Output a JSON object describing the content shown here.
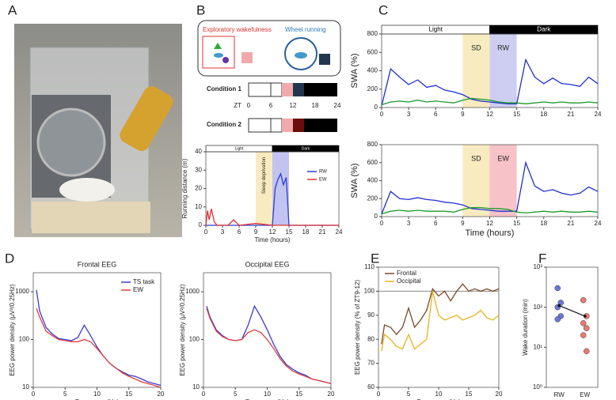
{
  "panel_labels": [
    "A",
    "B",
    "C",
    "D",
    "E",
    "F"
  ],
  "schematic": {
    "exploratory_label": "Exploratory wakefulness",
    "wheel_label": "Wheel running",
    "condition_1": "Condition 1",
    "condition_2": "Condition 2",
    "zt_label": "ZT",
    "zt_ticks": [
      0,
      6,
      12,
      18,
      24
    ]
  },
  "chart_data": [
    {
      "type": "line",
      "xlabel": "Time (hours)",
      "ylabel": "Running distance (m)",
      "xlim": [
        0,
        24
      ],
      "xticks": [
        0,
        3,
        6,
        9,
        12,
        15,
        18,
        21,
        24
      ],
      "ylim": [
        0,
        40
      ],
      "yticks": [
        0,
        10,
        20,
        30,
        40
      ],
      "phases": [
        {
          "label": "Light",
          "x": [
            0,
            12
          ],
          "color": "#ffffff"
        },
        {
          "label": "Dark",
          "x": [
            12,
            24
          ],
          "color": "#000000"
        }
      ],
      "shaded": [
        {
          "label": "Sleep deprivation",
          "x": [
            9,
            12
          ],
          "color": "#f7e7b4"
        },
        {
          "x": [
            12,
            15
          ],
          "color": "#b7b9ee"
        }
      ],
      "legend": "right",
      "series": [
        {
          "name": "RW",
          "color": "#2b3fd1",
          "x": [
            0,
            9,
            12,
            12.5,
            13,
            13.5,
            14,
            14.5,
            15,
            18,
            24
          ],
          "values": [
            0,
            0,
            0,
            20,
            25,
            28,
            22,
            26,
            0,
            0,
            0
          ]
        },
        {
          "name": "EW",
          "color": "#e03030",
          "x": [
            0,
            0.3,
            0.6,
            1,
            1.5,
            2,
            4,
            5,
            6,
            9,
            12,
            24
          ],
          "values": [
            0,
            8,
            3,
            9,
            2,
            0,
            0,
            3,
            0,
            1,
            0,
            0
          ]
        }
      ]
    },
    {
      "type": "line",
      "ylabel": "SWA (%)",
      "xlim": [
        0,
        24
      ],
      "xticks": [
        0,
        3,
        6,
        9,
        12,
        15,
        18,
        21,
        24
      ],
      "ylim": [
        0,
        800
      ],
      "yticks": [
        0,
        200,
        400,
        600,
        800
      ],
      "phases": [
        {
          "label": "Light",
          "x": [
            0,
            12
          ],
          "color": "#ffffff"
        },
        {
          "label": "Dark",
          "x": [
            12,
            24
          ],
          "color": "#000000"
        }
      ],
      "shaded": [
        {
          "label": "SD",
          "x": [
            9,
            12
          ],
          "color": "#f7e7b4"
        },
        {
          "label": "RW",
          "x": [
            12,
            15
          ],
          "color": "#c5c6f0"
        }
      ],
      "x": [
        0,
        1,
        2,
        3,
        4,
        5,
        6,
        7,
        8,
        9,
        10,
        11,
        12,
        13,
        14,
        15,
        16,
        17,
        18,
        19,
        20,
        21,
        22,
        23,
        24
      ],
      "series": [
        {
          "color": "#1f2fd0",
          "values": [
            20,
            420,
            330,
            250,
            300,
            220,
            240,
            190,
            170,
            140,
            90,
            70,
            60,
            50,
            40,
            40,
            520,
            330,
            260,
            320,
            260,
            250,
            230,
            330,
            260
          ]
        },
        {
          "color": "#1f9a2b",
          "values": [
            30,
            60,
            70,
            60,
            80,
            60,
            70,
            60,
            50,
            80,
            100,
            90,
            80,
            60,
            50,
            50,
            40,
            50,
            60,
            50,
            60,
            50,
            50,
            60,
            50
          ]
        }
      ]
    },
    {
      "type": "line",
      "xlabel": "Time (hours)",
      "ylabel": "SWA (%)",
      "xlim": [
        0,
        24
      ],
      "xticks": [
        0,
        3,
        6,
        9,
        12,
        15,
        18,
        21,
        24
      ],
      "ylim": [
        0,
        800
      ],
      "yticks": [
        0,
        200,
        400,
        600,
        800
      ],
      "shaded": [
        {
          "label": "SD",
          "x": [
            9,
            12
          ],
          "color": "#f7e7b4"
        },
        {
          "label": "EW",
          "x": [
            12,
            15
          ],
          "color": "#f6b9be"
        }
      ],
      "x": [
        0,
        1,
        2,
        3,
        4,
        5,
        6,
        7,
        8,
        9,
        10,
        11,
        12,
        13,
        14,
        15,
        16,
        17,
        18,
        19,
        20,
        21,
        22,
        23,
        24
      ],
      "series": [
        {
          "color": "#1f2fd0",
          "values": [
            30,
            280,
            200,
            190,
            210,
            190,
            180,
            160,
            150,
            130,
            90,
            80,
            70,
            60,
            60,
            60,
            600,
            340,
            280,
            300,
            260,
            240,
            260,
            330,
            280
          ]
        },
        {
          "color": "#1f9a2b",
          "values": [
            30,
            60,
            70,
            60,
            70,
            60,
            60,
            60,
            50,
            80,
            100,
            100,
            90,
            90,
            80,
            50,
            40,
            50,
            60,
            50,
            60,
            50,
            50,
            60,
            50
          ]
        }
      ]
    },
    {
      "type": "line",
      "title": "Frontal EEG",
      "xlabel": "Frequency (Hz)",
      "ylabel": "EEG power density (µV²/0.25Hz)",
      "log_y": true,
      "xlim": [
        0,
        20
      ],
      "xticks": [
        0,
        5,
        10,
        15,
        20
      ],
      "ylim": [
        10,
        2500
      ],
      "yticks": [
        10,
        100,
        1000
      ],
      "legend": "upper right",
      "x": [
        0.5,
        1,
        2,
        3,
        4,
        5,
        6,
        7,
        8,
        9,
        10,
        11,
        12,
        13,
        14,
        15,
        16,
        17,
        18,
        19,
        20
      ],
      "series": [
        {
          "name": "TS task",
          "color": "#3a3ad8",
          "values": [
            1100,
            400,
            180,
            130,
            105,
            100,
            95,
            110,
            200,
            120,
            70,
            45,
            32,
            25,
            21,
            18,
            17,
            15,
            13,
            12,
            11
          ]
        },
        {
          "name": "EW",
          "color": "#e0403a",
          "values": [
            450,
            300,
            150,
            120,
            100,
            95,
            90,
            90,
            100,
            90,
            65,
            45,
            32,
            25,
            20,
            17,
            15,
            13,
            12,
            11,
            10
          ]
        }
      ]
    },
    {
      "type": "line",
      "title": "Occipital EEG",
      "xlabel": "Frequency (Hz)",
      "ylabel": "EEG power density (µV²/0.25Hz)",
      "log_y": true,
      "xlim": [
        0,
        20
      ],
      "xticks": [
        0,
        5,
        10,
        15,
        20
      ],
      "ylim": [
        10,
        2500
      ],
      "yticks": [
        10,
        100,
        1000
      ],
      "x": [
        0.5,
        1,
        2,
        3,
        4,
        5,
        6,
        7,
        8,
        9,
        10,
        11,
        12,
        13,
        14,
        15,
        16,
        17,
        18,
        19,
        20
      ],
      "series": [
        {
          "color": "#3a3ad8",
          "values": [
            500,
            300,
            160,
            120,
            100,
            95,
            100,
            200,
            500,
            300,
            160,
            80,
            45,
            30,
            24,
            20,
            18,
            15,
            14,
            13,
            12
          ]
        },
        {
          "color": "#e0403a",
          "values": [
            450,
            280,
            150,
            115,
            100,
            95,
            100,
            140,
            160,
            140,
            100,
            65,
            40,
            28,
            22,
            19,
            17,
            15,
            14,
            13,
            12
          ]
        }
      ]
    },
    {
      "type": "line",
      "xlabel": "Frequency (Hz)",
      "ylabel": "EEG power density (% of ZT9-12)",
      "xlim": [
        0,
        20
      ],
      "xticks": [
        0,
        5,
        10,
        15,
        20
      ],
      "ylim": [
        60,
        110
      ],
      "yticks": [
        60,
        70,
        80,
        90,
        100,
        110
      ],
      "reference_line": 100,
      "legend": "upper left",
      "x": [
        0.5,
        1,
        2,
        3,
        4,
        5,
        6,
        7,
        8,
        9,
        10,
        11,
        12,
        13,
        14,
        15,
        16,
        17,
        18,
        19,
        20
      ],
      "series": [
        {
          "name": "Frontal",
          "color": "#7a4a2a",
          "values": [
            78,
            86,
            85,
            82,
            85,
            93,
            85,
            88,
            92,
            101,
            98,
            100,
            96,
            100,
            103,
            100,
            101,
            100,
            101,
            100,
            101
          ]
        },
        {
          "name": "Occipital",
          "color": "#e8b21e",
          "values": [
            75,
            82,
            80,
            77,
            76,
            82,
            76,
            78,
            80,
            100,
            90,
            88,
            89,
            90,
            88,
            89,
            90,
            92,
            89,
            88,
            90
          ]
        }
      ]
    },
    {
      "type": "scatter",
      "ylabel": "Wake duration (min)",
      "log_y": true,
      "categories": [
        "RW",
        "EW"
      ],
      "ylim": [
        1,
        1000
      ],
      "yticks": [
        {
          "value": 1,
          "label": "10⁰"
        },
        {
          "value": 10,
          "label": "10¹"
        },
        {
          "value": 100,
          "label": "10²"
        },
        {
          "value": 1000,
          "label": "10³"
        }
      ],
      "means": [
        110,
        60
      ],
      "series": [
        {
          "color": "#6c78d8",
          "values": [
            300,
            130,
            100,
            60,
            50
          ]
        },
        {
          "color": "#e87a74",
          "values": [
            150,
            60,
            40,
            30,
            20,
            8
          ]
        }
      ]
    }
  ]
}
